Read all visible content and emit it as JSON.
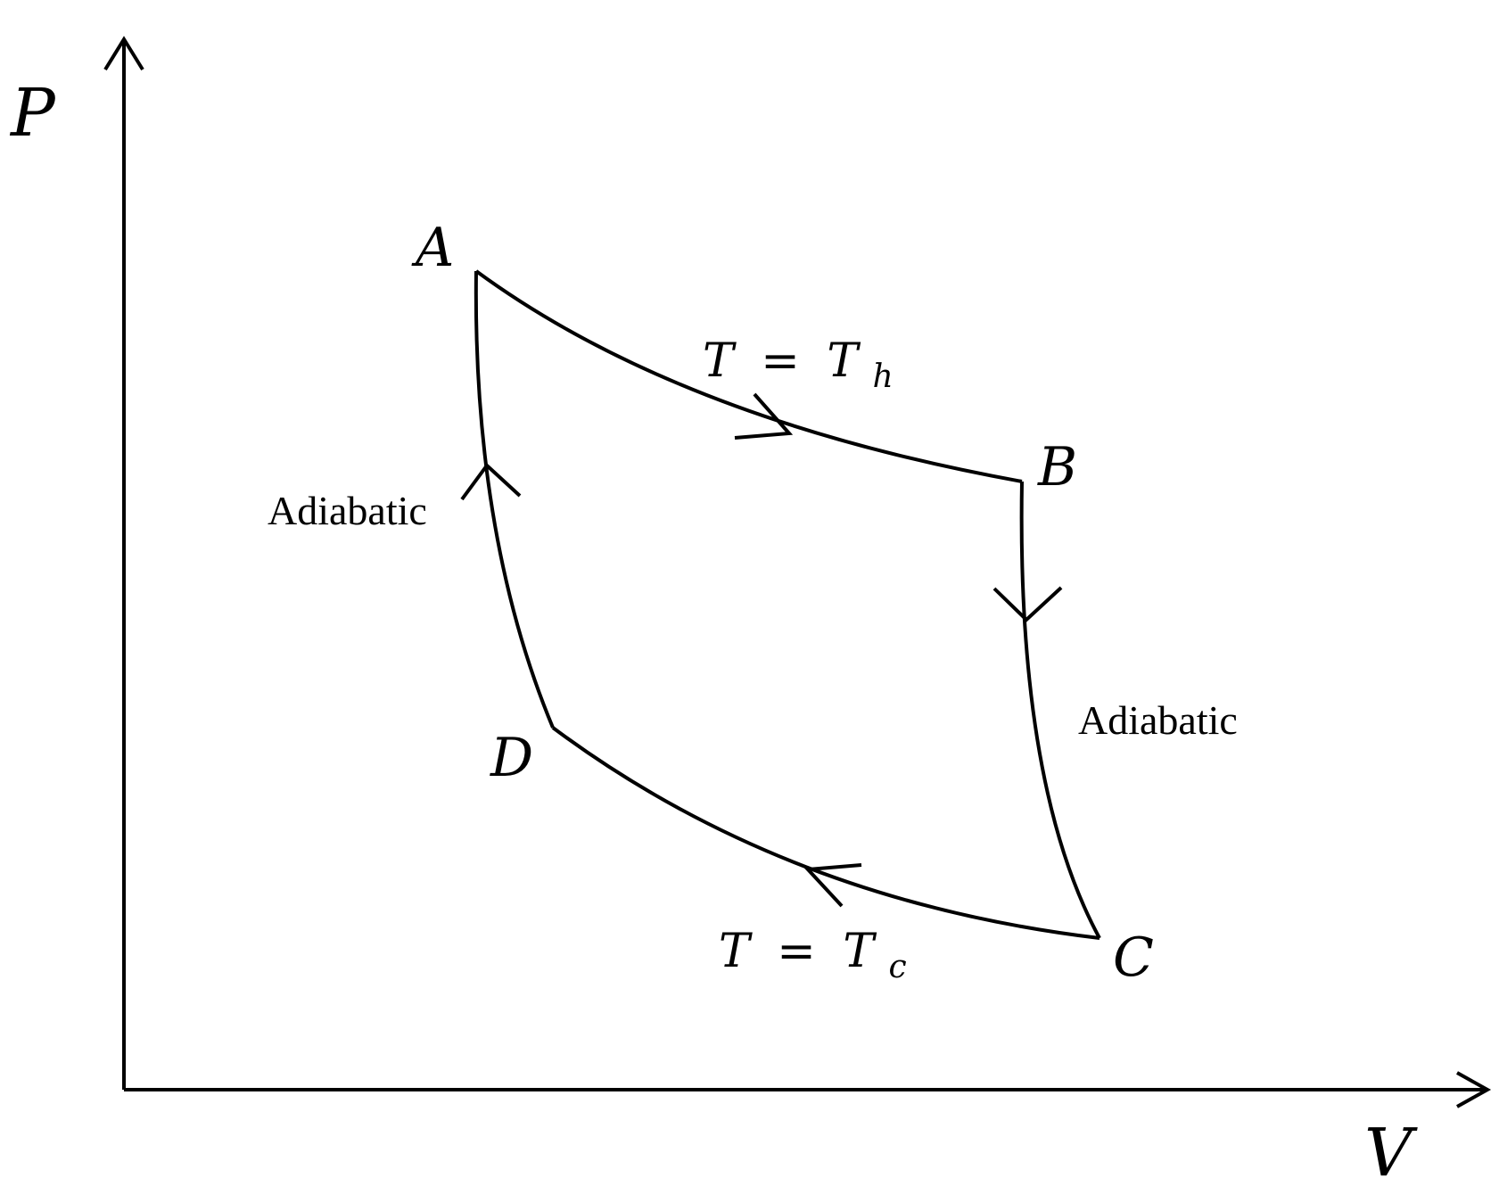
{
  "diagram": {
    "axes": {
      "y_label": "P",
      "x_label": "V"
    },
    "points": {
      "A": "A",
      "B": "B",
      "C": "C",
      "D": "D"
    },
    "processes": {
      "top_isotherm": {
        "var": "T",
        "eq": "=",
        "temp": "T",
        "sub": "h"
      },
      "bottom_isotherm": {
        "var": "T",
        "eq": "=",
        "temp": "T",
        "sub": "c"
      },
      "left_adiabat": "Adiabatic",
      "right_adiabat": "Adiabatic"
    },
    "colors": {
      "line": "#000000",
      "background": "#ffffff"
    }
  }
}
